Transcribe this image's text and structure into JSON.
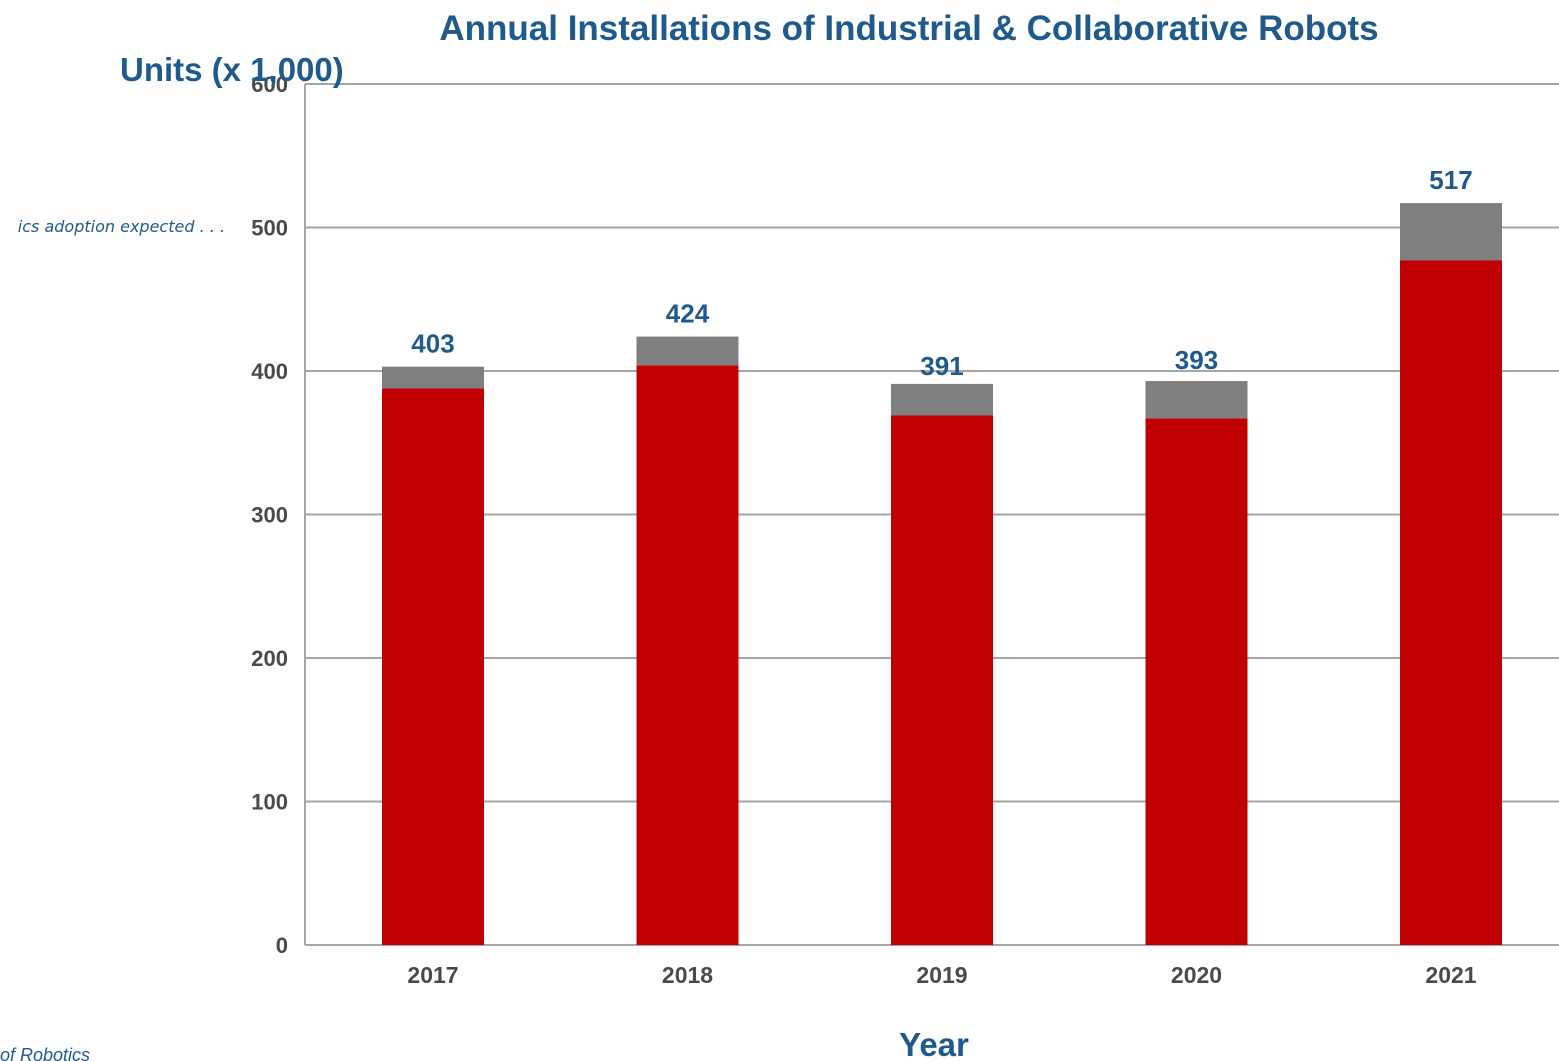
{
  "chart_data": {
    "type": "bar",
    "stacked": true,
    "title": "Annual Installations of Industrial & Collaborative Robots",
    "ylabel": "Units (x 1,000)",
    "xlabel": "Year",
    "categories": [
      "2017",
      "2018",
      "2019",
      "2020",
      "2021"
    ],
    "series": [
      {
        "values": [
          388,
          404,
          369,
          367,
          477
        ],
        "color": "#c00000"
      },
      {
        "values": [
          15,
          20,
          22,
          26,
          40
        ],
        "color": "#7f7f7f"
      }
    ],
    "totals": [
      403,
      424,
      391,
      393,
      517
    ],
    "total_labels": [
      "403",
      "424",
      "391",
      "393",
      "517"
    ],
    "ylim": [
      0,
      600
    ],
    "yticks": [
      0,
      100,
      200,
      300,
      400,
      500,
      600
    ],
    "ytick_labels": [
      "0",
      "100",
      "200",
      "300",
      "400",
      "500",
      "600"
    ],
    "grid": true,
    "gridline_color": "#a6a6a6",
    "annotations": [
      {
        "text": "ics adoption expected . . ."
      }
    ],
    "source_text": "of Robotics"
  }
}
